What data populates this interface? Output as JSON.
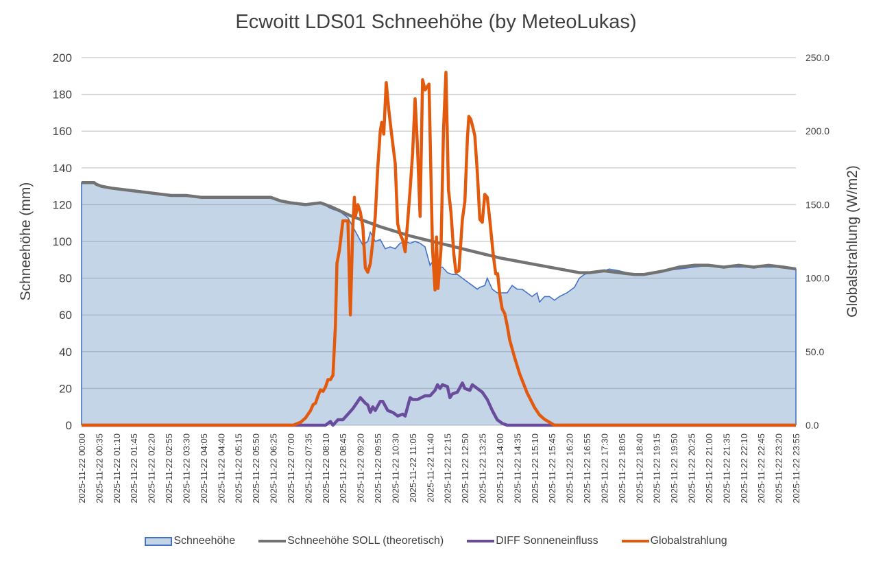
{
  "chart_data": {
    "type": "area+line",
    "title": "Ecwoitt LDS01 Schneehöhe (by MeteoLukas)",
    "xlabel": "",
    "ylabel": "Schneehöhe (mm)",
    "y2label": "Globalstrahlung (W/m2)",
    "ylim": [
      0,
      200
    ],
    "y2lim": [
      0,
      250
    ],
    "yticks": [
      "0",
      "20",
      "40",
      "60",
      "80",
      "100",
      "120",
      "140",
      "160",
      "180",
      "200"
    ],
    "y2ticks": [
      "0.0",
      "50.0",
      "100.0",
      "150.0",
      "200.0",
      "250.0"
    ],
    "grid": true,
    "legend_position": "bottom",
    "x_tick_labels": [
      "2025-11-22 00:00",
      "2025-11-22 00:35",
      "2025-11-22 01:10",
      "2025-11-22 01:45",
      "2025-11-22 02:20",
      "2025-11-22 02:55",
      "2025-11-22 03:30",
      "2025-11-22 04:05",
      "2025-11-22 04:40",
      "2025-11-22 05:15",
      "2025-11-22 05:50",
      "2025-11-22 06:25",
      "2025-11-22 07:00",
      "2025-11-22 07:35",
      "2025-11-22 08:10",
      "2025-11-22 08:45",
      "2025-11-22 09:20",
      "2025-11-22 09:55",
      "2025-11-22 10:30",
      "2025-11-22 11:05",
      "2025-11-22 11:40",
      "2025-11-22 12:15",
      "2025-11-22 12:50",
      "2025-11-22 13:25",
      "2025-11-22 14:00",
      "2025-11-22 14:35",
      "2025-11-22 15:10",
      "2025-11-22 15:45",
      "2025-11-22 16:20",
      "2025-11-22 16:55",
      "2025-11-22 17:30",
      "2025-11-22 18:05",
      "2025-11-22 18:40",
      "2025-11-22 19:15",
      "2025-11-22 19:50",
      "2025-11-22 20:25",
      "2025-11-22 21:00",
      "2025-11-22 21:35",
      "2025-11-22 22:10",
      "2025-11-22 22:45",
      "2025-11-22 23:20",
      "2025-11-22 23:55"
    ],
    "x_unit": "minutes since 00:00",
    "series": [
      {
        "name": "Schneehöhe",
        "type": "area",
        "axis": "left",
        "color": "#4472c4",
        "fill": "#c5d5e8",
        "points": [
          [
            0,
            132
          ],
          [
            25,
            132
          ],
          [
            35,
            130
          ],
          [
            60,
            129
          ],
          [
            90,
            128
          ],
          [
            120,
            127
          ],
          [
            150,
            126
          ],
          [
            180,
            125
          ],
          [
            210,
            125
          ],
          [
            240,
            124
          ],
          [
            270,
            124
          ],
          [
            300,
            124
          ],
          [
            330,
            124
          ],
          [
            360,
            124
          ],
          [
            380,
            124
          ],
          [
            400,
            122
          ],
          [
            420,
            121
          ],
          [
            450,
            120
          ],
          [
            480,
            121
          ],
          [
            500,
            118
          ],
          [
            520,
            116
          ],
          [
            535,
            113
          ],
          [
            545,
            108
          ],
          [
            555,
            103
          ],
          [
            565,
            98
          ],
          [
            575,
            100
          ],
          [
            580,
            105
          ],
          [
            590,
            100
          ],
          [
            600,
            101
          ],
          [
            610,
            96
          ],
          [
            620,
            97
          ],
          [
            630,
            96
          ],
          [
            640,
            99
          ],
          [
            650,
            100
          ],
          [
            660,
            99
          ],
          [
            670,
            100
          ],
          [
            680,
            99
          ],
          [
            690,
            97
          ],
          [
            700,
            87
          ],
          [
            705,
            89
          ],
          [
            715,
            86
          ],
          [
            725,
            86
          ],
          [
            735,
            83
          ],
          [
            745,
            82
          ],
          [
            755,
            82
          ],
          [
            765,
            80
          ],
          [
            775,
            78
          ],
          [
            785,
            76
          ],
          [
            795,
            74
          ],
          [
            800,
            75
          ],
          [
            810,
            76
          ],
          [
            815,
            80
          ],
          [
            825,
            74
          ],
          [
            835,
            72
          ],
          [
            845,
            72
          ],
          [
            855,
            72
          ],
          [
            865,
            76
          ],
          [
            875,
            74
          ],
          [
            885,
            74
          ],
          [
            895,
            72
          ],
          [
            905,
            70
          ],
          [
            915,
            72
          ],
          [
            920,
            67
          ],
          [
            930,
            70
          ],
          [
            940,
            70
          ],
          [
            950,
            68
          ],
          [
            960,
            70
          ],
          [
            975,
            72
          ],
          [
            990,
            75
          ],
          [
            1000,
            80
          ],
          [
            1010,
            82
          ],
          [
            1020,
            83
          ],
          [
            1035,
            83
          ],
          [
            1050,
            84
          ],
          [
            1060,
            85
          ],
          [
            1080,
            84
          ],
          [
            1110,
            82
          ],
          [
            1130,
            82
          ],
          [
            1150,
            83
          ],
          [
            1170,
            84
          ],
          [
            1200,
            85
          ],
          [
            1230,
            86
          ],
          [
            1260,
            87
          ],
          [
            1290,
            86
          ],
          [
            1320,
            86
          ],
          [
            1350,
            86
          ],
          [
            1380,
            86
          ],
          [
            1410,
            86
          ],
          [
            1435,
            85
          ]
        ]
      },
      {
        "name": "Schneehöhe SOLL (theoretisch)",
        "type": "line",
        "axis": "left",
        "color": "#737373",
        "points": [
          [
            0,
            132
          ],
          [
            25,
            132
          ],
          [
            30,
            131
          ],
          [
            40,
            130
          ],
          [
            60,
            129
          ],
          [
            90,
            128
          ],
          [
            120,
            127
          ],
          [
            150,
            126
          ],
          [
            180,
            125
          ],
          [
            210,
            125
          ],
          [
            240,
            124
          ],
          [
            270,
            124
          ],
          [
            300,
            124
          ],
          [
            330,
            124
          ],
          [
            360,
            124
          ],
          [
            380,
            124
          ],
          [
            400,
            122
          ],
          [
            420,
            121
          ],
          [
            450,
            120
          ],
          [
            480,
            121
          ],
          [
            500,
            119
          ],
          [
            540,
            114
          ],
          [
            600,
            108
          ],
          [
            660,
            103
          ],
          [
            720,
            99
          ],
          [
            780,
            95
          ],
          [
            840,
            91
          ],
          [
            900,
            88
          ],
          [
            960,
            85
          ],
          [
            1000,
            83
          ],
          [
            1020,
            83
          ],
          [
            1050,
            84
          ],
          [
            1080,
            83
          ],
          [
            1110,
            82
          ],
          [
            1130,
            82
          ],
          [
            1150,
            83
          ],
          [
            1170,
            84
          ],
          [
            1200,
            86
          ],
          [
            1230,
            87
          ],
          [
            1260,
            87
          ],
          [
            1290,
            86
          ],
          [
            1320,
            87
          ],
          [
            1350,
            86
          ],
          [
            1380,
            87
          ],
          [
            1410,
            86
          ],
          [
            1435,
            85
          ]
        ]
      },
      {
        "name": "DIFF Sonneneinfluss",
        "type": "line",
        "axis": "left",
        "color": "#6a4c9c",
        "points": [
          [
            0,
            0
          ],
          [
            490,
            0
          ],
          [
            500,
            2
          ],
          [
            505,
            0
          ],
          [
            515,
            3
          ],
          [
            525,
            3
          ],
          [
            535,
            6
          ],
          [
            545,
            9
          ],
          [
            555,
            13
          ],
          [
            560,
            15
          ],
          [
            570,
            12
          ],
          [
            575,
            11
          ],
          [
            580,
            7
          ],
          [
            585,
            10
          ],
          [
            590,
            8
          ],
          [
            600,
            13
          ],
          [
            605,
            13
          ],
          [
            615,
            8
          ],
          [
            625,
            7
          ],
          [
            635,
            5
          ],
          [
            645,
            6
          ],
          [
            650,
            5
          ],
          [
            655,
            10
          ],
          [
            660,
            15
          ],
          [
            665,
            14
          ],
          [
            675,
            14
          ],
          [
            690,
            16
          ],
          [
            700,
            16
          ],
          [
            710,
            19
          ],
          [
            715,
            22
          ],
          [
            720,
            20
          ],
          [
            725,
            22
          ],
          [
            735,
            21
          ],
          [
            740,
            15
          ],
          [
            745,
            17
          ],
          [
            755,
            18
          ],
          [
            765,
            23
          ],
          [
            770,
            20
          ],
          [
            780,
            19
          ],
          [
            785,
            22
          ],
          [
            795,
            20
          ],
          [
            805,
            18
          ],
          [
            815,
            14
          ],
          [
            825,
            8
          ],
          [
            835,
            3
          ],
          [
            845,
            1
          ],
          [
            855,
            0
          ],
          [
            1435,
            0
          ]
        ]
      },
      {
        "name": "Globalstrahlung",
        "type": "line",
        "axis": "right",
        "color": "#e15a0e",
        "points": [
          [
            0,
            0
          ],
          [
            425,
            0
          ],
          [
            440,
            2
          ],
          [
            450,
            5
          ],
          [
            460,
            10
          ],
          [
            465,
            14
          ],
          [
            470,
            15
          ],
          [
            475,
            20
          ],
          [
            480,
            24
          ],
          [
            485,
            23
          ],
          [
            490,
            26
          ],
          [
            495,
            31
          ],
          [
            500,
            31
          ],
          [
            505,
            34
          ],
          [
            510,
            68
          ],
          [
            513,
            110
          ],
          [
            518,
            119
          ],
          [
            525,
            139
          ],
          [
            535,
            139
          ],
          [
            540,
            75
          ],
          [
            545,
            135
          ],
          [
            548,
            155
          ],
          [
            550,
            142
          ],
          [
            555,
            150
          ],
          [
            560,
            145
          ],
          [
            565,
            135
          ],
          [
            570,
            107
          ],
          [
            575,
            104
          ],
          [
            580,
            110
          ],
          [
            585,
            125
          ],
          [
            590,
            142
          ],
          [
            595,
            175
          ],
          [
            600,
            200
          ],
          [
            603,
            206
          ],
          [
            607,
            198
          ],
          [
            612,
            233
          ],
          [
            617,
            215
          ],
          [
            622,
            200
          ],
          [
            630,
            178
          ],
          [
            635,
            137
          ],
          [
            640,
            130
          ],
          [
            645,
            126
          ],
          [
            650,
            118
          ],
          [
            655,
            138
          ],
          [
            660,
            160
          ],
          [
            665,
            185
          ],
          [
            670,
            222
          ],
          [
            675,
            188
          ],
          [
            680,
            142
          ],
          [
            685,
            235
          ],
          [
            690,
            228
          ],
          [
            698,
            232
          ],
          [
            705,
            120
          ],
          [
            710,
            92
          ],
          [
            713,
            128
          ],
          [
            716,
            93
          ],
          [
            722,
            120
          ],
          [
            727,
            200
          ],
          [
            732,
            240
          ],
          [
            737,
            160
          ],
          [
            742,
            145
          ],
          [
            748,
            116
          ],
          [
            752,
            104
          ],
          [
            758,
            105
          ],
          [
            765,
            140
          ],
          [
            770,
            152
          ],
          [
            775,
            195
          ],
          [
            778,
            210
          ],
          [
            782,
            208
          ],
          [
            785,
            204
          ],
          [
            790,
            197
          ],
          [
            795,
            172
          ],
          [
            800,
            140
          ],
          [
            805,
            138
          ],
          [
            810,
            157
          ],
          [
            815,
            155
          ],
          [
            820,
            140
          ],
          [
            827,
            116
          ],
          [
            832,
            103
          ],
          [
            836,
            103
          ],
          [
            840,
            89
          ],
          [
            845,
            79
          ],
          [
            850,
            76
          ],
          [
            855,
            68
          ],
          [
            860,
            58
          ],
          [
            870,
            46
          ],
          [
            880,
            35
          ],
          [
            895,
            22
          ],
          [
            910,
            12
          ],
          [
            920,
            7
          ],
          [
            930,
            4
          ],
          [
            940,
            2
          ],
          [
            950,
            0
          ],
          [
            1435,
            0
          ]
        ]
      }
    ]
  },
  "legend": {
    "items": [
      {
        "label": "Schneehöhe"
      },
      {
        "label": "Schneehöhe SOLL (theoretisch)"
      },
      {
        "label": "DIFF Sonneneinfluss"
      },
      {
        "label": "Globalstrahlung"
      }
    ]
  }
}
